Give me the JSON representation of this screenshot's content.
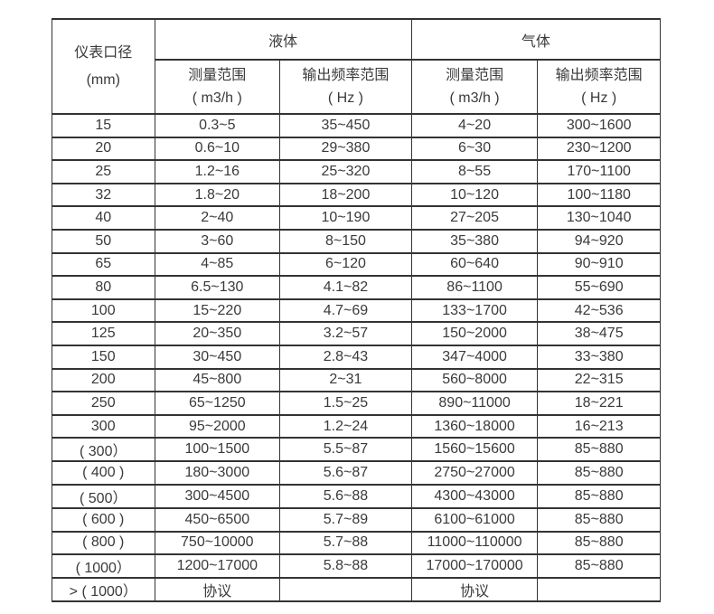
{
  "page": {
    "background_color": "#ffffff"
  },
  "table": {
    "border_color": "#333333",
    "text_color": "#3a3a3a",
    "header": {
      "diameter_line1": "仪表口径",
      "diameter_line2": "(mm)",
      "groups": [
        {
          "label": "液体"
        },
        {
          "label": "气体"
        }
      ],
      "subheaders": [
        {
          "line1": "测量范围",
          "line2": "( m3/h )"
        },
        {
          "line1": "输出频率范围",
          "line2": "( Hz )"
        },
        {
          "line1": "测量范围",
          "line2": "( m3/h )"
        },
        {
          "line1": "输出频率范围",
          "line2": "( Hz )"
        }
      ]
    },
    "rows": [
      [
        "15",
        "0.3~5",
        "35~450",
        "4~20",
        "300~1600"
      ],
      [
        "20",
        "0.6~10",
        "29~380",
        "6~30",
        "230~1200"
      ],
      [
        "25",
        "1.2~16",
        "25~320",
        "8~55",
        "170~1100"
      ],
      [
        "32",
        "1.8~20",
        "18~200",
        "10~120",
        "100~1180"
      ],
      [
        "40",
        "2~40",
        "10~190",
        "27~205",
        "130~1040"
      ],
      [
        "50",
        "3~60",
        "8~150",
        "35~380",
        "94~920"
      ],
      [
        "65",
        "4~85",
        "6~120",
        "60~640",
        "90~910"
      ],
      [
        "80",
        "6.5~130",
        "4.1~82",
        "86~1100",
        "55~690"
      ],
      [
        "100",
        "15~220",
        "4.7~69",
        "133~1700",
        "42~536"
      ],
      [
        "125",
        "20~350",
        "3.2~57",
        "150~2000",
        "38~475"
      ],
      [
        "150",
        "30~450",
        "2.8~43",
        "347~4000",
        "33~380"
      ],
      [
        "200",
        "45~800",
        "2~31",
        "560~8000",
        "22~315"
      ],
      [
        "250",
        "65~1250",
        "1.5~25",
        "890~11000",
        "18~221"
      ],
      [
        "300",
        "95~2000",
        "1.2~24",
        "1360~18000",
        "16~213"
      ],
      [
        "( 300）",
        "100~1500",
        "5.5~87",
        "1560~15600",
        "85~880"
      ],
      [
        "( 400 )",
        "180~3000",
        "5.6~87",
        "2750~27000",
        "85~880"
      ],
      [
        "( 500）",
        "300~4500",
        "5.6~88",
        "4300~43000",
        "85~880"
      ],
      [
        "( 600 )",
        "450~6500",
        "5.7~89",
        "6100~61000",
        "85~880"
      ],
      [
        "( 800 )",
        "750~10000",
        "5.7~88",
        "11000~110000",
        "85~880"
      ],
      [
        "( 1000）",
        "1200~17000",
        "5.8~88",
        "17000~170000",
        "85~880"
      ],
      [
        "> ( 1000）",
        "协议",
        "",
        "协议",
        ""
      ]
    ]
  }
}
